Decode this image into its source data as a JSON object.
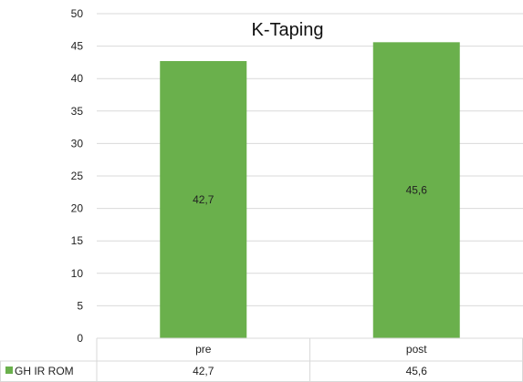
{
  "chart_data": {
    "type": "bar",
    "title": "K-Taping",
    "categories": [
      "pre",
      "post"
    ],
    "series": [
      {
        "name": "GH IR ROM",
        "values": [
          42.7,
          45.6
        ],
        "labels": [
          "42,7",
          "45,6"
        ],
        "color": "#6ab04c"
      }
    ],
    "ylim": [
      0,
      50
    ],
    "yticks": [
      0,
      5,
      10,
      15,
      20,
      25,
      30,
      35,
      40,
      45,
      50
    ],
    "grid": true,
    "legend": "data-table",
    "data_table": true
  }
}
